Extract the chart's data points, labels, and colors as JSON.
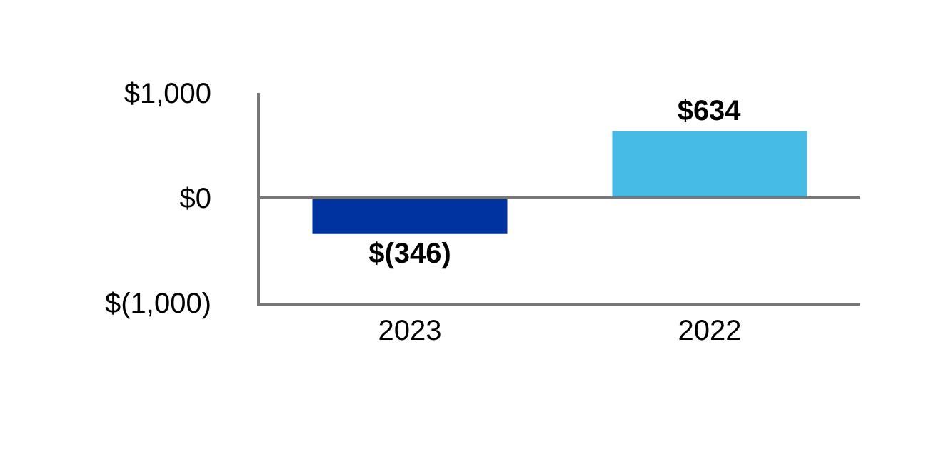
{
  "chart_data": {
    "type": "bar",
    "categories": [
      "2023",
      "2022"
    ],
    "values": [
      -346,
      634
    ],
    "colors": [
      "#0033a0",
      "#45bbe6"
    ],
    "value_labels": [
      "$(346)",
      "$634"
    ],
    "ylim": [
      -1000,
      1000
    ],
    "yticks": [
      {
        "value": -1000,
        "label": "$(1,000)"
      },
      {
        "value": 0,
        "label": "$0"
      },
      {
        "value": 1000,
        "label": "$1,000"
      }
    ],
    "ref_lines": [
      {
        "axis": "y",
        "value": 0,
        "color": "#777777"
      }
    ]
  }
}
